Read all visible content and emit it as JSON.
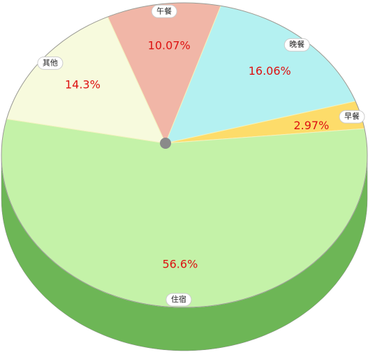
{
  "chart_data": {
    "type": "pie",
    "categories": [
      "晚餐",
      "早餐",
      "住宿",
      "其他",
      "午餐"
    ],
    "values": [
      16.06,
      2.97,
      56.6,
      14.3,
      10.07
    ],
    "value_labels": [
      "16.06%",
      "2.97%",
      "56.6%",
      "14.3%",
      "10.07%"
    ],
    "colors": [
      "#b4f1f1",
      "#fddc6a",
      "#c4f2a8",
      "#f7fadd",
      "#f1b6a7"
    ],
    "side_colors": [
      "#5fbfc3",
      "#d8ae3c",
      "#6db656",
      "#a9a9a9",
      "#c7887a"
    ]
  }
}
